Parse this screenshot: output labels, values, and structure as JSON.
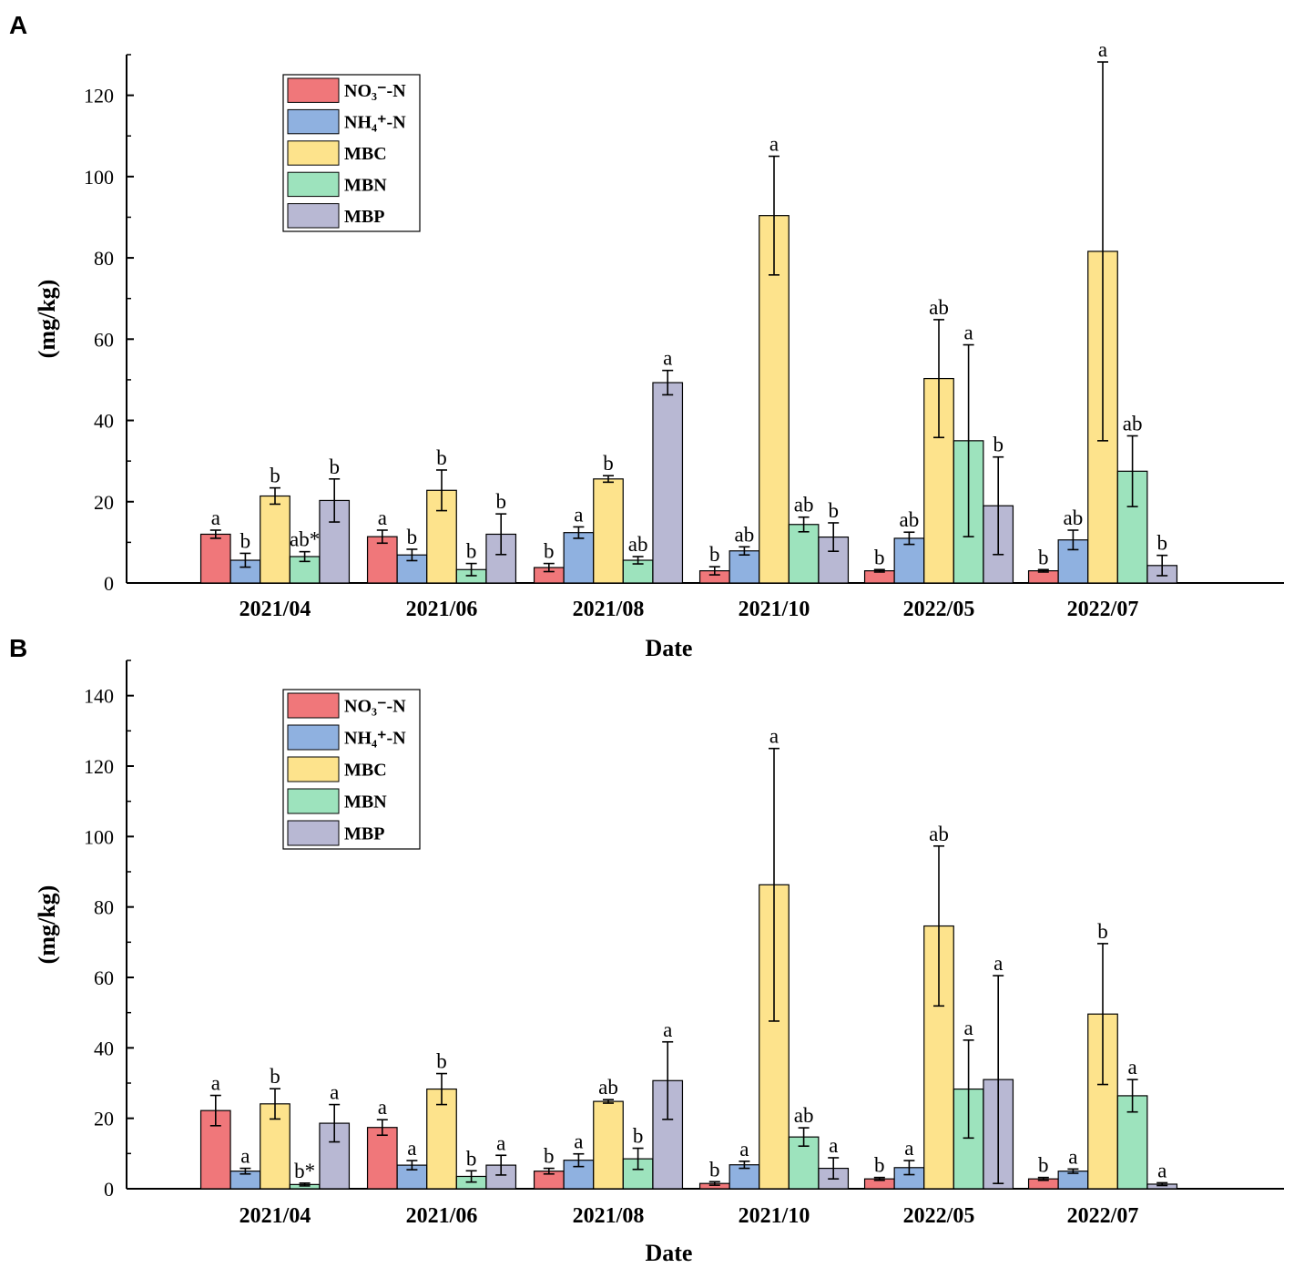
{
  "chart_data": [
    {
      "type": "bar",
      "panel_label": "A",
      "categories": [
        "2021/04",
        "2021/06",
        "2021/08",
        "2021/10",
        "2022/05",
        "2022/07"
      ],
      "xlabel": "Date",
      "ylabel": "(mg/kg)",
      "ylim": [
        0,
        130
      ],
      "yticks": [
        0,
        20,
        40,
        60,
        80,
        100,
        120
      ],
      "legend_position": "top-left",
      "series": [
        {
          "name": "NO₃⁻-N",
          "color": "#f0777a",
          "values": [
            12,
            11.4,
            3.8,
            3,
            3,
            3
          ],
          "errors": [
            1,
            1.6,
            1,
            1,
            0.3,
            0.3
          ],
          "labels": [
            "a",
            "a",
            "b",
            "b",
            "b",
            "b"
          ]
        },
        {
          "name": "NH₄⁺-N",
          "color": "#8fb1e0",
          "values": [
            5.6,
            6.9,
            12.4,
            7.9,
            11,
            10.6
          ],
          "errors": [
            1.7,
            1.4,
            1.4,
            1,
            1.5,
            2.4
          ],
          "labels": [
            "b",
            "b",
            "a",
            "ab",
            "ab",
            "ab"
          ]
        },
        {
          "name": "MBC",
          "color": "#fde38c",
          "values": [
            21.4,
            22.8,
            25.6,
            90.4,
            50.3,
            81.6
          ],
          "errors": [
            2,
            5,
            0.8,
            14.6,
            14.5,
            46.6
          ],
          "labels": [
            "b",
            "b",
            "b",
            "a",
            "ab",
            "a"
          ]
        },
        {
          "name": "MBN",
          "color": "#9de3bd",
          "values": [
            6.5,
            3.3,
            5.6,
            14.4,
            35,
            27.5
          ],
          "errors": [
            1.2,
            1.5,
            0.9,
            1.8,
            23.6,
            8.7
          ],
          "labels": [
            "ab*",
            "b",
            "ab",
            "ab",
            "a",
            "ab"
          ]
        },
        {
          "name": "MBP",
          "color": "#b8b8d3",
          "values": [
            20.3,
            12,
            49.3,
            11.3,
            19,
            4.3
          ],
          "errors": [
            5.3,
            5,
            3,
            3.5,
            12,
            2.5
          ],
          "labels": [
            "b",
            "b",
            "a",
            "b",
            "b",
            "b"
          ]
        }
      ]
    },
    {
      "type": "bar",
      "panel_label": "B",
      "categories": [
        "2021/04",
        "2021/06",
        "2021/08",
        "2021/10",
        "2022/05",
        "2022/07"
      ],
      "xlabel": "Date",
      "ylabel": "(mg/kg)",
      "ylim": [
        0,
        150
      ],
      "yticks": [
        0,
        20,
        40,
        60,
        80,
        100,
        120,
        140
      ],
      "legend_position": "top-left",
      "series": [
        {
          "name": "NO₃⁻-N",
          "color": "#f0777a",
          "values": [
            22.2,
            17.4,
            5,
            1.5,
            2.8,
            2.8
          ],
          "errors": [
            4.3,
            2.2,
            0.8,
            0.5,
            0.4,
            0.4
          ],
          "labels": [
            "a",
            "a",
            "b",
            "b",
            "b",
            "b"
          ]
        },
        {
          "name": "NH₄⁺-N",
          "color": "#8fb1e0",
          "values": [
            5,
            6.7,
            8.1,
            6.8,
            6,
            5
          ],
          "errors": [
            0.8,
            1.3,
            1.8,
            1,
            2,
            0.6
          ],
          "labels": [
            "a",
            "a",
            "a",
            "a",
            "a",
            "a"
          ]
        },
        {
          "name": "MBC",
          "color": "#fde38c",
          "values": [
            24.1,
            28.3,
            24.8,
            86.3,
            74.6,
            49.6
          ],
          "errors": [
            4.3,
            4.4,
            0.5,
            38.7,
            22.7,
            20
          ],
          "labels": [
            "b",
            "b",
            "ab",
            "a",
            "ab",
            "b"
          ]
        },
        {
          "name": "MBN",
          "color": "#9de3bd",
          "values": [
            1.2,
            3.5,
            8.5,
            14.7,
            28.3,
            26.4
          ],
          "errors": [
            0.4,
            1.6,
            3,
            2.6,
            13.9,
            4.6
          ],
          "labels": [
            "b*",
            "b",
            "b",
            "ab",
            "a",
            "a"
          ]
        },
        {
          "name": "MBP",
          "color": "#b8b8d3",
          "values": [
            18.6,
            6.7,
            30.7,
            5.8,
            31,
            1.3
          ],
          "errors": [
            5.3,
            2.8,
            11,
            3,
            29.5,
            0.4
          ],
          "labels": [
            "a",
            "a",
            "a",
            "a",
            "a",
            "a"
          ]
        }
      ]
    }
  ]
}
